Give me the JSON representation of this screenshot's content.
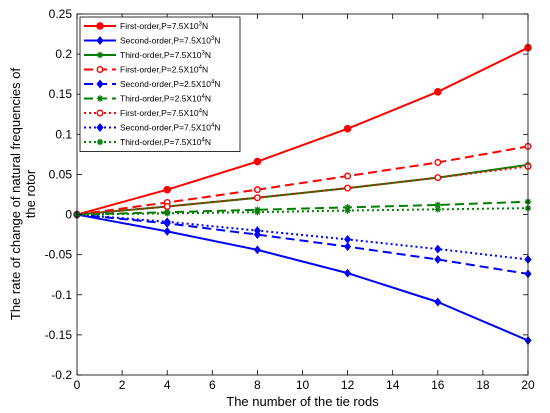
{
  "chart_data": {
    "type": "line",
    "xlabel": "The number of the tie rods",
    "ylabel_lines": [
      "The rate of change of natural frequencies of",
      "the rotor"
    ],
    "xlim": [
      0,
      20
    ],
    "ylim": [
      -0.2,
      0.25
    ],
    "x_ticks": [
      0,
      2,
      4,
      6,
      8,
      10,
      12,
      14,
      16,
      18,
      20
    ],
    "y_ticks": [
      -0.2,
      -0.15,
      -0.1,
      -0.05,
      0,
      0.05,
      0.1,
      0.15,
      0.2,
      0.25
    ],
    "y_tick_labels": [
      "-0.2",
      "-0.15",
      "-0.1",
      "-0.05",
      "0",
      "0.05",
      "0.1",
      "0.15",
      "0.2",
      "0.25"
    ],
    "x": [
      0,
      4,
      8,
      12,
      16,
      20
    ],
    "grid": false,
    "legend_position": "top-left",
    "series": [
      {
        "name": "First-order,P=7.5X10",
        "exp": "3",
        "unit": "N",
        "color": "#ff0000",
        "dash": "solid",
        "marker": "dot",
        "values": [
          0,
          0.031,
          0.066,
          0.107,
          0.153,
          0.208
        ]
      },
      {
        "name": "Second-order,P=7.5X10",
        "exp": "3",
        "unit": "N",
        "color": "#0000ff",
        "dash": "solid",
        "marker": "diamond",
        "values": [
          0,
          -0.021,
          -0.044,
          -0.073,
          -0.109,
          -0.157
        ]
      },
      {
        "name": "Third-order,P=7.5X10",
        "exp": "3",
        "unit": "N",
        "color": "#008000",
        "dash": "solid",
        "marker": "star",
        "values": [
          0,
          0.01,
          0.021,
          0.033,
          0.046,
          0.062
        ]
      },
      {
        "name": "First-order,P=2.5X10",
        "exp": "4",
        "unit": "N",
        "color": "#ff0000",
        "dash": "dashed",
        "marker": "circle",
        "values": [
          0,
          0.015,
          0.031,
          0.048,
          0.065,
          0.085
        ]
      },
      {
        "name": "Second-order,P=2.5X10",
        "exp": "4",
        "unit": "N",
        "color": "#0000ff",
        "dash": "dashed",
        "marker": "diamond",
        "values": [
          0,
          -0.011,
          -0.025,
          -0.04,
          -0.056,
          -0.074
        ]
      },
      {
        "name": "Third-order,P=2.5X10",
        "exp": "4",
        "unit": "N",
        "color": "#008000",
        "dash": "dashed",
        "marker": "star",
        "values": [
          0,
          0.003,
          0.006,
          0.009,
          0.012,
          0.016
        ]
      },
      {
        "name": "First-order,P=7.5X10",
        "exp": "4",
        "unit": "N",
        "color": "#ff0000",
        "dash": "dotted",
        "marker": "circle",
        "values": [
          0,
          0.01,
          0.021,
          0.033,
          0.046,
          0.06
        ]
      },
      {
        "name": "Second-order,P=7.5X10",
        "exp": "4",
        "unit": "N",
        "color": "#0000ff",
        "dash": "dotted",
        "marker": "diamond",
        "values": [
          0,
          -0.009,
          -0.02,
          -0.031,
          -0.043,
          -0.056
        ]
      },
      {
        "name": "Third-order,P=7.5X10",
        "exp": "4",
        "unit": "N",
        "color": "#008000",
        "dash": "dotted",
        "marker": "star",
        "values": [
          0,
          0.0015,
          0.003,
          0.005,
          0.0065,
          0.008
        ]
      }
    ]
  }
}
